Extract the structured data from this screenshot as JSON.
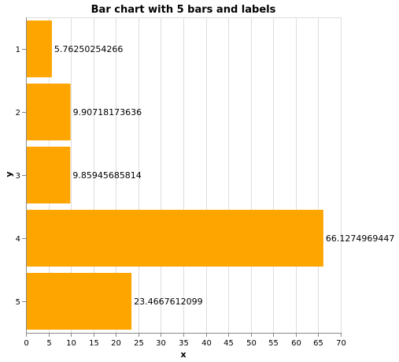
{
  "chart_data": {
    "type": "bar",
    "orientation": "horizontal",
    "title": "Bar chart with 5 bars and labels",
    "xlabel": "x",
    "ylabel": "y",
    "categories": [
      "1",
      "2",
      "3",
      "4",
      "5"
    ],
    "values": [
      5.76250254266,
      9.90718173636,
      9.85945685814,
      66.1274969447,
      23.4667612099
    ],
    "data_labels": [
      "5.76250254266",
      "9.90718173636",
      "9.85945685814",
      "66.1274969447",
      "23.4667612099"
    ],
    "xlim": [
      0,
      70
    ],
    "xticks": [
      0,
      5,
      10,
      15,
      20,
      25,
      30,
      35,
      40,
      45,
      50,
      55,
      60,
      65,
      70
    ],
    "grid": true,
    "bar_color": "#ffa500"
  }
}
